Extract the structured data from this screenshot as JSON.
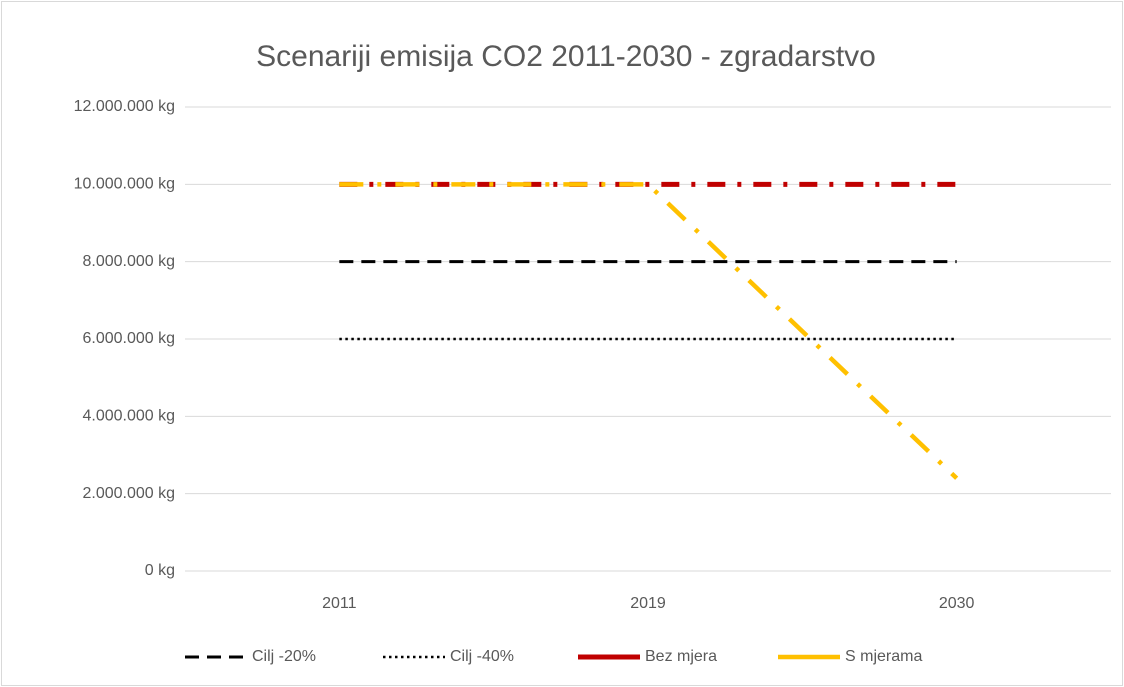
{
  "chart_data": {
    "type": "line",
    "title": "Scenariji emisija CO2 2011-2030 - zgradarstvo",
    "categories": [
      "2011",
      "2019",
      "2030"
    ],
    "series": [
      {
        "name": "Cilj -20%",
        "color": "#000000",
        "style": "dashed",
        "values": [
          8000000,
          8000000,
          8000000
        ]
      },
      {
        "name": "Cilj -40%",
        "color": "#000000",
        "style": "dotted",
        "values": [
          6000000,
          6000000,
          6000000
        ]
      },
      {
        "name": "Bez mjera",
        "color": "#c00000",
        "style": "dashdot",
        "values": [
          10000000,
          10000000,
          10000000
        ]
      },
      {
        "name": "S mjerama",
        "color": "#ffc000",
        "style": "longdashdot",
        "values": [
          10000000,
          10000000,
          2400000
        ]
      }
    ],
    "ylim": [
      0,
      12000000
    ],
    "yticks": [
      {
        "value": 0,
        "label": "0 kg"
      },
      {
        "value": 2000000,
        "label": "2.000.000 kg"
      },
      {
        "value": 4000000,
        "label": "4.000.000 kg"
      },
      {
        "value": 6000000,
        "label": "6.000.000 kg"
      },
      {
        "value": 8000000,
        "label": "8.000.000 kg"
      },
      {
        "value": 10000000,
        "label": "10.000.000 kg"
      },
      {
        "value": 12000000,
        "label": "12.000.000 kg"
      }
    ],
    "grid": true,
    "legend": "bottom"
  }
}
